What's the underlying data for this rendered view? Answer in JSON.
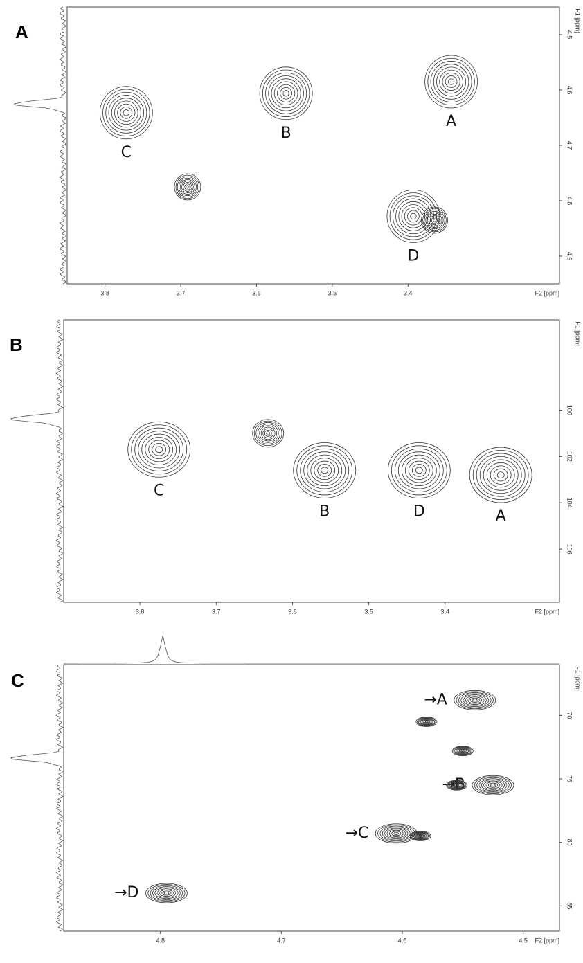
{
  "chart_data": [
    {
      "type": "contour",
      "panel": "A",
      "xlabel": "F2 [ppm]",
      "ylabel": "F1 [ppm]",
      "xlim": [
        3.85,
        3.2
      ],
      "ylim": [
        4.45,
        4.95
      ],
      "xticks": [
        3.8,
        3.7,
        3.6,
        3.5,
        3.4
      ],
      "yticks": [
        4.5,
        4.6,
        4.7,
        4.8,
        4.9
      ],
      "x": [
        3.772,
        3.691,
        3.561,
        3.343,
        3.393,
        3.365
      ],
      "y": [
        4.641,
        4.775,
        4.606,
        4.585,
        4.828,
        4.835
      ],
      "labels": [
        "C",
        null,
        "B",
        "A",
        "D",
        null
      ],
      "label_position": "below",
      "color": "#333333"
    },
    {
      "type": "contour",
      "panel": "B",
      "xlabel": "F2 [ppm]",
      "ylabel": "F1 [ppm]",
      "xlim": [
        3.9,
        3.25
      ],
      "ylim": [
        96.1,
        108.3
      ],
      "xticks": [
        3.8,
        3.7,
        3.6,
        3.5,
        3.4
      ],
      "yticks": [
        100,
        102,
        104,
        106
      ],
      "x": [
        3.775,
        3.632,
        3.558,
        3.434,
        3.327
      ],
      "y": [
        101.7,
        101.0,
        102.6,
        102.6,
        102.8
      ],
      "labels": [
        "C",
        null,
        "B",
        "D",
        "A"
      ],
      "label_position": "below",
      "color": "#333333"
    },
    {
      "type": "contour",
      "panel": "C",
      "xlabel": "F2 [ppm]",
      "ylabel": "F1 [ppm]",
      "xlim": [
        4.88,
        4.47
      ],
      "ylim": [
        66,
        87
      ],
      "xticks": [
        4.8,
        4.7,
        4.6,
        4.5
      ],
      "yticks": [
        70,
        75,
        80,
        85
      ],
      "x": [
        4.54,
        4.58,
        4.55,
        4.525,
        4.555,
        4.605,
        4.585,
        4.795
      ],
      "y": [
        68.8,
        70.5,
        72.8,
        75.5,
        75.5,
        79.3,
        79.5,
        84.0
      ],
      "labels": [
        "→A",
        null,
        null,
        "→B",
        null,
        "→C",
        null,
        "→D"
      ],
      "label_position": "left",
      "color": "#333333"
    }
  ]
}
